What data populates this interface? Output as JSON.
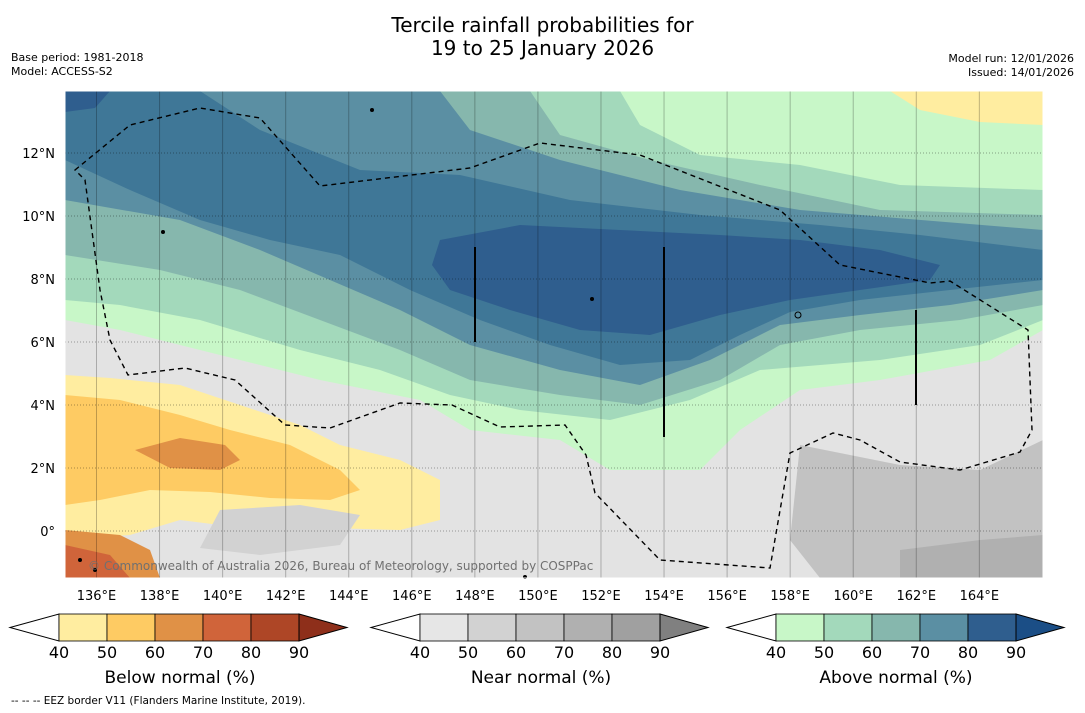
{
  "header": {
    "title_line1": "Tercile rainfall probabilities for",
    "title_line2": "19 to 25 January 2026",
    "base_period": "Base period: 1981-2018",
    "model": "Model: ACCESS-S2",
    "model_run": "Model run: 12/01/2026",
    "issued": "Issued: 14/01/2026"
  },
  "map": {
    "lat_labels": [
      "12°N",
      "10°N",
      "8°N",
      "6°N",
      "4°N",
      "2°N",
      "0°"
    ],
    "lat_values": [
      12,
      10,
      8,
      6,
      4,
      2,
      0
    ],
    "lon_labels": [
      "136°E",
      "138°E",
      "140°E",
      "142°E",
      "144°E",
      "146°E",
      "148°E",
      "150°E",
      "152°E",
      "154°E",
      "156°E",
      "158°E",
      "160°E",
      "162°E",
      "164°E"
    ],
    "lon_values": [
      136,
      138,
      140,
      142,
      144,
      146,
      148,
      150,
      152,
      154,
      156,
      158,
      160,
      162,
      164
    ],
    "lon_range": [
      135,
      166
    ],
    "lat_range": [
      -1.5,
      14
    ],
    "copyright": "© Commonwealth of Australia 2026, Bureau of Meteorology, supported by COSPPac"
  },
  "colorbars": {
    "ticks": [
      "40",
      "50",
      "60",
      "70",
      "80",
      "90"
    ],
    "below": {
      "label": "Below normal (%)",
      "colors": [
        "#ffeda0",
        "#fecb63",
        "#e09146",
        "#d0643a",
        "#ae4626",
        "#8e2f1a"
      ]
    },
    "near": {
      "label": "Near normal (%)",
      "colors": [
        "#e6e6e6",
        "#d2d2d2",
        "#c2c2c2",
        "#b0b0b0",
        "#a0a0a0",
        "#808080"
      ]
    },
    "above": {
      "label": "Above normal (%)",
      "colors": [
        "#c8f7c8",
        "#a3d9bb",
        "#86b7ad",
        "#5b8fa3",
        "#2f5e8e",
        "#1b4e86"
      ]
    }
  },
  "footer": {
    "note": "--  --  -- EEZ border V11 (Flanders Marine Institute, 2019)."
  }
}
